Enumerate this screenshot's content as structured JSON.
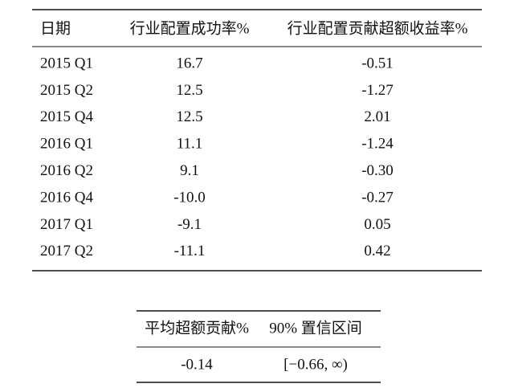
{
  "table1": {
    "header": [
      "日期",
      "行业配置成功率%",
      "行业配置贡献超额收益率%"
    ],
    "rows": [
      [
        "2015 Q1",
        "16.7",
        "-0.51"
      ],
      [
        "2015 Q2",
        "12.5",
        "-1.27"
      ],
      [
        "2015 Q4",
        "12.5",
        "2.01"
      ],
      [
        "2016 Q1",
        "11.1",
        "-1.24"
      ],
      [
        "2016 Q2",
        "9.1",
        "-0.30"
      ],
      [
        "2016 Q4",
        "-10.0",
        "-0.27"
      ],
      [
        "2017 Q1",
        "-9.1",
        "0.05"
      ],
      [
        "2017 Q2",
        "-11.1",
        "0.42"
      ]
    ]
  },
  "table2": {
    "header": [
      "平均超额贡献%",
      "90% 置信区间"
    ],
    "rows": [
      [
        "-0.14",
        "[−0.66, ∞)"
      ]
    ]
  }
}
